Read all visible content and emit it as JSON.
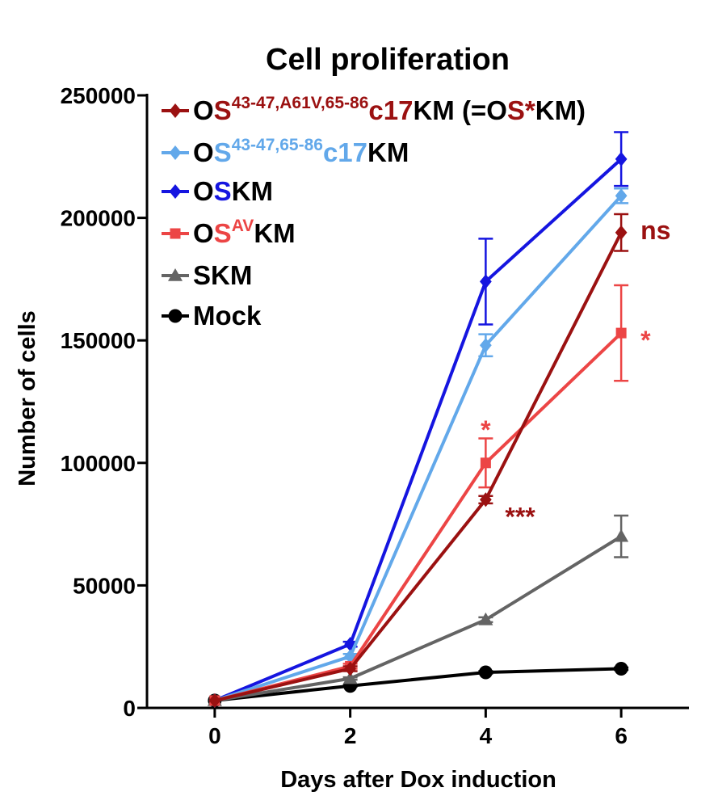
{
  "chart_data": {
    "type": "line",
    "title": "Cell proliferation",
    "xlabel": "Days after Dox induction",
    "ylabel": "Number of cells",
    "x": [
      0,
      2,
      4,
      6
    ],
    "xlim": [
      -1,
      7
    ],
    "ylim": [
      0,
      250000
    ],
    "x_ticks": [
      "0",
      "2",
      "4",
      "6"
    ],
    "y_ticks": [
      "0",
      "50000",
      "100000",
      "150000",
      "200000",
      "250000"
    ],
    "legend_position": "top-left",
    "series": [
      {
        "key": "os_star_km",
        "color": "#9b1111",
        "marker": "diamond",
        "legend": [
          {
            "t": "O",
            "c": "#000000",
            "sup": false
          },
          {
            "t": "S",
            "c": "#9b1111",
            "sup": false
          },
          {
            "t": "43-47,A61V,65-86",
            "c": "#9b1111",
            "sup": true
          },
          {
            "t": "c17",
            "c": "#9b1111",
            "sup": false
          },
          {
            "t": "KM (=O",
            "c": "#000000",
            "sup": false
          },
          {
            "t": "S*",
            "c": "#9b1111",
            "sup": false
          },
          {
            "t": "KM)",
            "c": "#000000",
            "sup": false
          }
        ],
        "values": [
          3000,
          16000,
          85000,
          194000
        ],
        "errors": [
          0,
          1000,
          1500,
          7500
        ]
      },
      {
        "key": "os_c17_km",
        "color": "#62a8ea",
        "marker": "diamond",
        "legend": [
          {
            "t": "O",
            "c": "#000000",
            "sup": false
          },
          {
            "t": "S",
            "c": "#62a8ea",
            "sup": false
          },
          {
            "t": "43-47,65-86",
            "c": "#62a8ea",
            "sup": true
          },
          {
            "t": "c17",
            "c": "#62a8ea",
            "sup": false
          },
          {
            "t": "KM",
            "c": "#000000",
            "sup": false
          }
        ],
        "values": [
          3000,
          21000,
          148000,
          209000
        ],
        "errors": [
          0,
          1000,
          4500,
          3000
        ]
      },
      {
        "key": "oskm",
        "color": "#1515e0",
        "marker": "diamond",
        "legend": [
          {
            "t": "O",
            "c": "#000000",
            "sup": false
          },
          {
            "t": "S",
            "c": "#1515e0",
            "sup": false
          },
          {
            "t": "KM",
            "c": "#000000",
            "sup": false
          }
        ],
        "values": [
          3000,
          26000,
          174000,
          224000
        ],
        "errors": [
          0,
          1000,
          17500,
          11000
        ]
      },
      {
        "key": "os_av_km",
        "color": "#ec4545",
        "marker": "square",
        "legend": [
          {
            "t": "O",
            "c": "#000000",
            "sup": false
          },
          {
            "t": "S",
            "c": "#ec4545",
            "sup": false
          },
          {
            "t": "AV",
            "c": "#ec4545",
            "sup": true
          },
          {
            "t": "KM",
            "c": "#000000",
            "sup": false
          }
        ],
        "values": [
          3000,
          17000,
          100000,
          153000
        ],
        "errors": [
          0,
          1000,
          10000,
          19500
        ]
      },
      {
        "key": "skm",
        "color": "#646464",
        "marker": "triangle",
        "legend": [
          {
            "t": "SKM",
            "c": "#000000",
            "sup": false
          }
        ],
        "values": [
          3000,
          12000,
          36000,
          70000
        ],
        "errors": [
          0,
          500,
          1000,
          8500
        ]
      },
      {
        "key": "mock",
        "color": "#000000",
        "marker": "circle",
        "legend": [
          {
            "t": "Mock",
            "c": "#000000",
            "sup": false
          }
        ],
        "values": [
          3000,
          9000,
          14500,
          16000
        ],
        "errors": [
          0,
          300,
          500,
          500
        ]
      }
    ],
    "annotations": [
      {
        "text": "ns",
        "color": "#9b1111",
        "x": 6,
        "y": 194000,
        "anchor": "right"
      },
      {
        "text": "*",
        "color": "#ec4545",
        "x": 6,
        "y": 153000,
        "anchor": "right"
      },
      {
        "text": "*",
        "color": "#ec4545",
        "x": 4,
        "y": 100000,
        "anchor": "above"
      },
      {
        "text": "***",
        "color": "#9b1111",
        "x": 4,
        "y": 85000,
        "anchor": "right"
      }
    ]
  }
}
